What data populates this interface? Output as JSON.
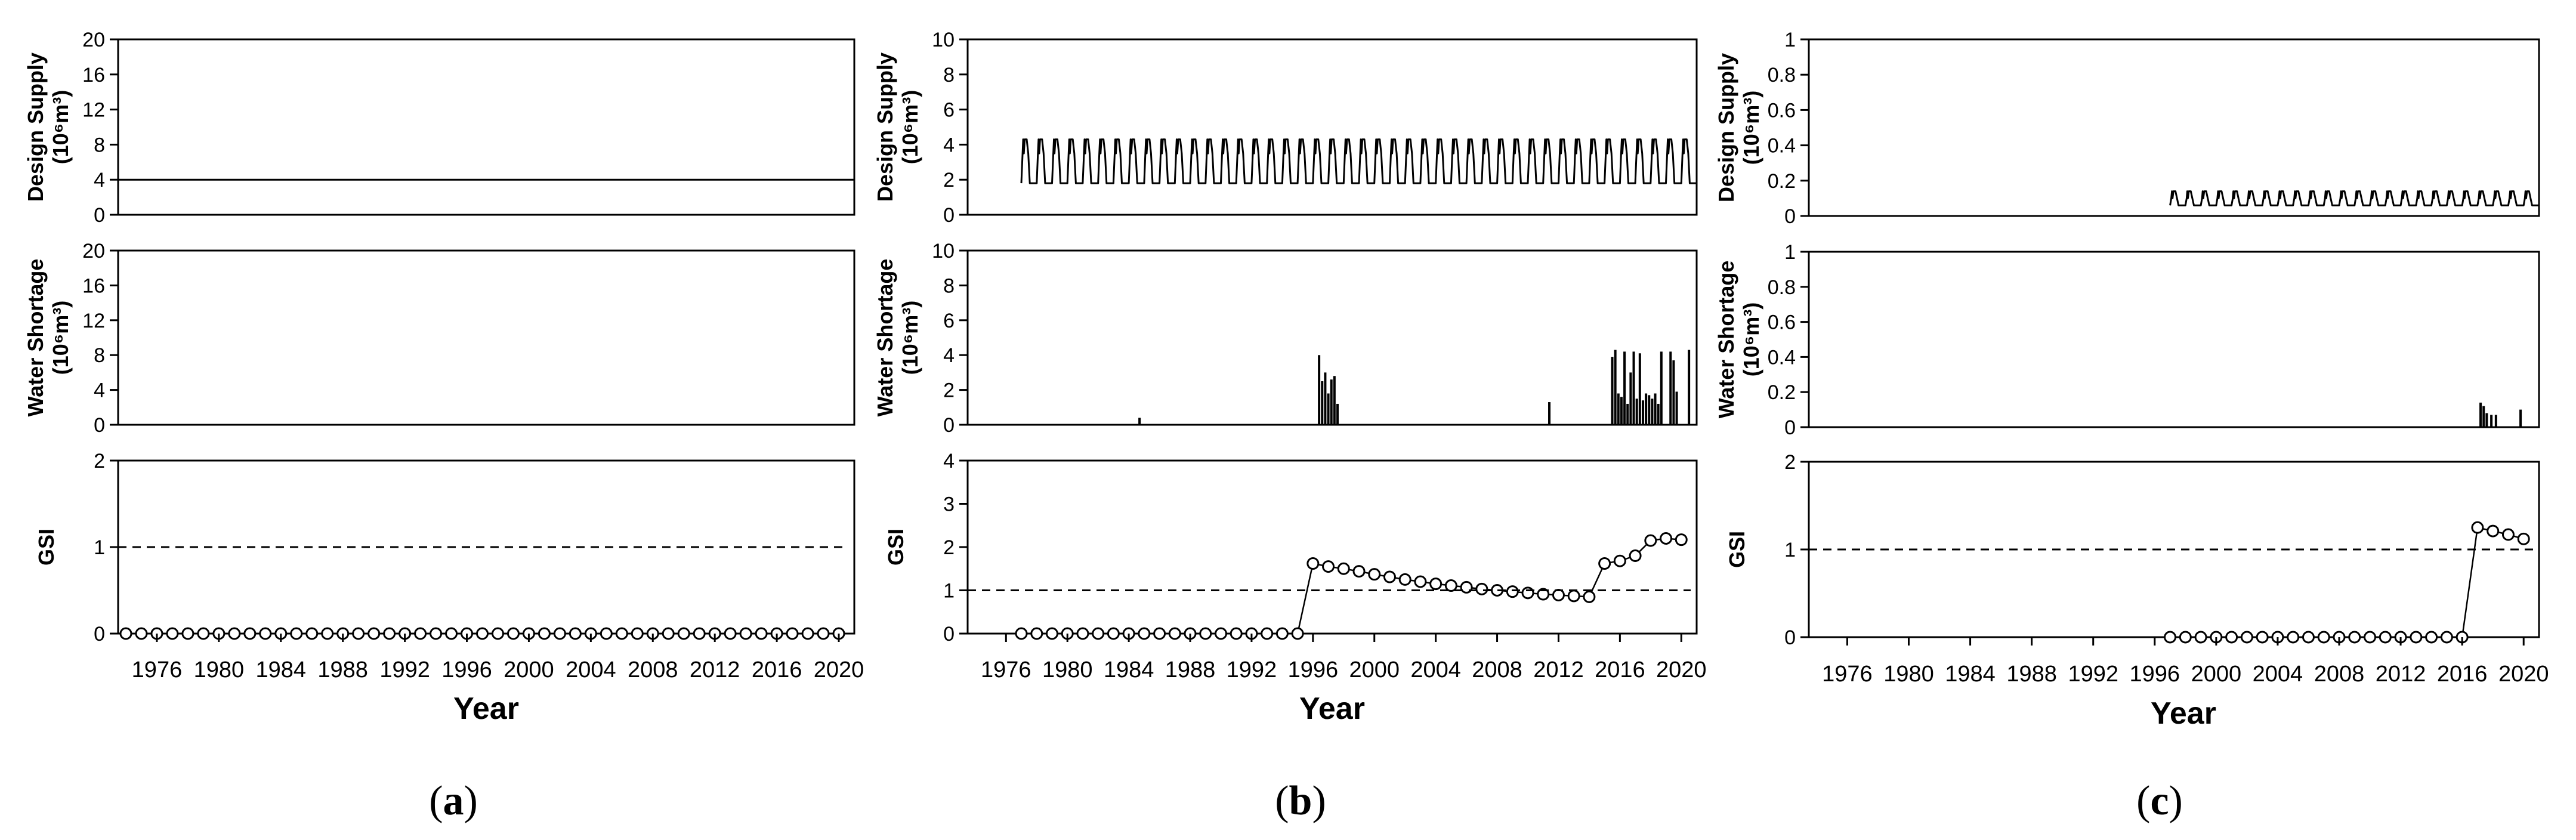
{
  "chart_data": [
    {
      "type": "line",
      "panel_label": "(a)",
      "xlabel": "Year",
      "xticks": [
        1976,
        1980,
        1984,
        1988,
        1992,
        1996,
        2000,
        2004,
        2008,
        2012,
        2016,
        2020
      ],
      "xlim": [
        1973.5,
        2021
      ],
      "subplots": [
        {
          "ylabel": [
            "Design Supply",
            "(10⁶m³)"
          ],
          "ylim": [
            0,
            20
          ],
          "yticks": [
            0,
            4,
            8,
            12,
            16,
            20
          ],
          "series": [
            {
              "name": "Design Supply",
              "kind": "constant",
              "start": 1973.5,
              "end": 2021,
              "value": 4.0
            }
          ]
        },
        {
          "ylabel": [
            "Water Shortage",
            "(10⁶m³)"
          ],
          "ylim": [
            0,
            20
          ],
          "yticks": [
            0,
            4,
            8,
            12,
            16,
            20
          ],
          "series": [
            {
              "name": "Water Shortage",
              "kind": "constant",
              "start": 1973.5,
              "end": 2021,
              "value": 0.0
            }
          ],
          "spikes": []
        },
        {
          "ylabel": [
            "GSI"
          ],
          "ylim": [
            0,
            2
          ],
          "yticks": [
            0,
            1,
            2
          ],
          "threshold": 1,
          "series": [
            {
              "name": "GSI",
              "x": [
                1974,
                1975,
                1976,
                1977,
                1978,
                1979,
                1980,
                1981,
                1982,
                1983,
                1984,
                1985,
                1986,
                1987,
                1988,
                1989,
                1990,
                1991,
                1992,
                1993,
                1994,
                1995,
                1996,
                1997,
                1998,
                1999,
                2000,
                2001,
                2002,
                2003,
                2004,
                2005,
                2006,
                2007,
                2008,
                2009,
                2010,
                2011,
                2012,
                2013,
                2014,
                2015,
                2016,
                2017,
                2018,
                2019,
                2020
              ],
              "y": [
                0,
                0,
                0,
                0,
                0,
                0,
                0,
                0,
                0,
                0,
                0,
                0,
                0,
                0,
                0,
                0,
                0,
                0,
                0,
                0,
                0,
                0,
                0,
                0,
                0,
                0,
                0,
                0,
                0,
                0,
                0,
                0,
                0,
                0,
                0,
                0,
                0,
                0,
                0,
                0,
                0,
                0,
                0,
                0,
                0,
                0,
                0
              ]
            }
          ]
        }
      ]
    },
    {
      "type": "line",
      "panel_label": "(b)",
      "xlabel": "Year",
      "xticks": [
        1976,
        1980,
        1984,
        1988,
        1992,
        1996,
        2000,
        2004,
        2008,
        2012,
        2016,
        2020
      ],
      "xlim": [
        1973.5,
        2021
      ],
      "subplots": [
        {
          "ylabel": [
            "Design Supply",
            "(10⁶m³)"
          ],
          "ylim": [
            0,
            10
          ],
          "yticks": [
            0,
            2,
            4,
            6,
            8,
            10
          ],
          "series": [
            {
              "name": "Design Supply",
              "kind": "seasonal",
              "start": 1977,
              "end": 2021,
              "low": 1.8,
              "high": 4.3,
              "mid": 3.5
            }
          ]
        },
        {
          "ylabel": [
            "Water Shortage",
            "(10⁶m³)"
          ],
          "ylim": [
            0,
            10
          ],
          "yticks": [
            0,
            2,
            4,
            6,
            8,
            10
          ],
          "series": [
            {
              "name": "Water Shortage",
              "kind": "constant",
              "start": 1977,
              "end": 2021,
              "value": 0.0
            }
          ],
          "spikes": [
            {
              "x": 1984.7,
              "v": 0.4
            },
            {
              "x": 1996.4,
              "v": 4.0
            },
            {
              "x": 1996.6,
              "v": 2.5
            },
            {
              "x": 1996.8,
              "v": 3.0
            },
            {
              "x": 1997.0,
              "v": 1.8
            },
            {
              "x": 1997.2,
              "v": 2.6
            },
            {
              "x": 1997.4,
              "v": 2.8
            },
            {
              "x": 1997.6,
              "v": 1.2
            },
            {
              "x": 2011.4,
              "v": 1.3
            },
            {
              "x": 2015.5,
              "v": 3.9
            },
            {
              "x": 2015.7,
              "v": 4.3
            },
            {
              "x": 2015.9,
              "v": 1.8
            },
            {
              "x": 2016.1,
              "v": 1.6
            },
            {
              "x": 2016.3,
              "v": 4.2
            },
            {
              "x": 2016.5,
              "v": 1.2
            },
            {
              "x": 2016.7,
              "v": 3.0
            },
            {
              "x": 2016.9,
              "v": 4.2
            },
            {
              "x": 2017.1,
              "v": 1.5
            },
            {
              "x": 2017.3,
              "v": 4.1
            },
            {
              "x": 2017.5,
              "v": 1.4
            },
            {
              "x": 2017.7,
              "v": 1.8
            },
            {
              "x": 2017.9,
              "v": 1.7
            },
            {
              "x": 2018.1,
              "v": 1.5
            },
            {
              "x": 2018.3,
              "v": 1.8
            },
            {
              "x": 2018.5,
              "v": 1.2
            },
            {
              "x": 2018.7,
              "v": 4.2
            },
            {
              "x": 2019.3,
              "v": 4.2
            },
            {
              "x": 2019.5,
              "v": 3.7
            },
            {
              "x": 2019.7,
              "v": 1.9
            },
            {
              "x": 2020.5,
              "v": 4.3
            }
          ]
        },
        {
          "ylabel": [
            "GSI"
          ],
          "ylim": [
            0,
            4
          ],
          "yticks": [
            0,
            1,
            2,
            3,
            4
          ],
          "threshold": 1,
          "series": [
            {
              "name": "GSI",
              "x": [
                1977,
                1978,
                1979,
                1980,
                1981,
                1982,
                1983,
                1984,
                1985,
                1986,
                1987,
                1988,
                1989,
                1990,
                1991,
                1992,
                1993,
                1994,
                1995,
                1996,
                1997,
                1998,
                1999,
                2000,
                2001,
                2002,
                2003,
                2004,
                2005,
                2006,
                2007,
                2008,
                2009,
                2010,
                2011,
                2012,
                2013,
                2014,
                2015,
                2016,
                2017,
                2018,
                2019,
                2020
              ],
              "y": [
                0,
                0,
                0,
                0,
                0,
                0,
                0,
                0,
                0,
                0,
                0,
                0,
                0,
                0,
                0,
                0,
                0,
                0,
                0,
                1.62,
                1.55,
                1.5,
                1.44,
                1.37,
                1.31,
                1.25,
                1.2,
                1.15,
                1.11,
                1.07,
                1.03,
                1.0,
                0.97,
                0.94,
                0.91,
                0.89,
                0.87,
                0.85,
                1.62,
                1.68,
                1.8,
                2.15,
                2.2,
                2.17
              ]
            }
          ]
        }
      ]
    },
    {
      "type": "line",
      "panel_label": "(c)",
      "xlabel": "Year",
      "xticks": [
        1976,
        1980,
        1984,
        1988,
        1992,
        1996,
        2000,
        2004,
        2008,
        2012,
        2016,
        2020
      ],
      "xlim": [
        1973.5,
        2021
      ],
      "subplots": [
        {
          "ylabel": [
            "Design Supply",
            "(10⁶m³)"
          ],
          "ylim": [
            0,
            1
          ],
          "yticks": [
            0,
            0.2,
            0.4,
            0.6,
            0.8,
            1
          ],
          "series": [
            {
              "name": "Design Supply",
              "kind": "seasonal",
              "start": 1997,
              "end": 2021,
              "low": 0.06,
              "high": 0.14,
              "mid": 0.1
            }
          ]
        },
        {
          "ylabel": [
            "Water Shortage",
            "(10⁶m³)"
          ],
          "ylim": [
            0,
            1
          ],
          "yticks": [
            0,
            0.2,
            0.4,
            0.6,
            0.8,
            1
          ],
          "series": [
            {
              "name": "Water Shortage",
              "kind": "constant",
              "start": 1997,
              "end": 2021,
              "value": 0.0
            }
          ],
          "spikes": [
            {
              "x": 2017.2,
              "v": 0.14
            },
            {
              "x": 2017.4,
              "v": 0.12
            },
            {
              "x": 2017.6,
              "v": 0.08
            },
            {
              "x": 2017.9,
              "v": 0.07
            },
            {
              "x": 2018.2,
              "v": 0.07
            },
            {
              "x": 2019.8,
              "v": 0.1
            }
          ]
        },
        {
          "ylabel": [
            "GSI"
          ],
          "ylim": [
            0,
            2
          ],
          "yticks": [
            0,
            1,
            2
          ],
          "threshold": 1,
          "series": [
            {
              "name": "GSI",
              "x": [
                1997,
                1998,
                1999,
                2000,
                2001,
                2002,
                2003,
                2004,
                2005,
                2006,
                2007,
                2008,
                2009,
                2010,
                2011,
                2012,
                2013,
                2014,
                2015,
                2016,
                2017,
                2018,
                2019,
                2020
              ],
              "y": [
                0,
                0,
                0,
                0,
                0,
                0,
                0,
                0,
                0,
                0,
                0,
                0,
                0,
                0,
                0,
                0,
                0,
                0,
                0,
                0,
                1.25,
                1.21,
                1.17,
                1.12
              ]
            }
          ]
        }
      ]
    }
  ]
}
